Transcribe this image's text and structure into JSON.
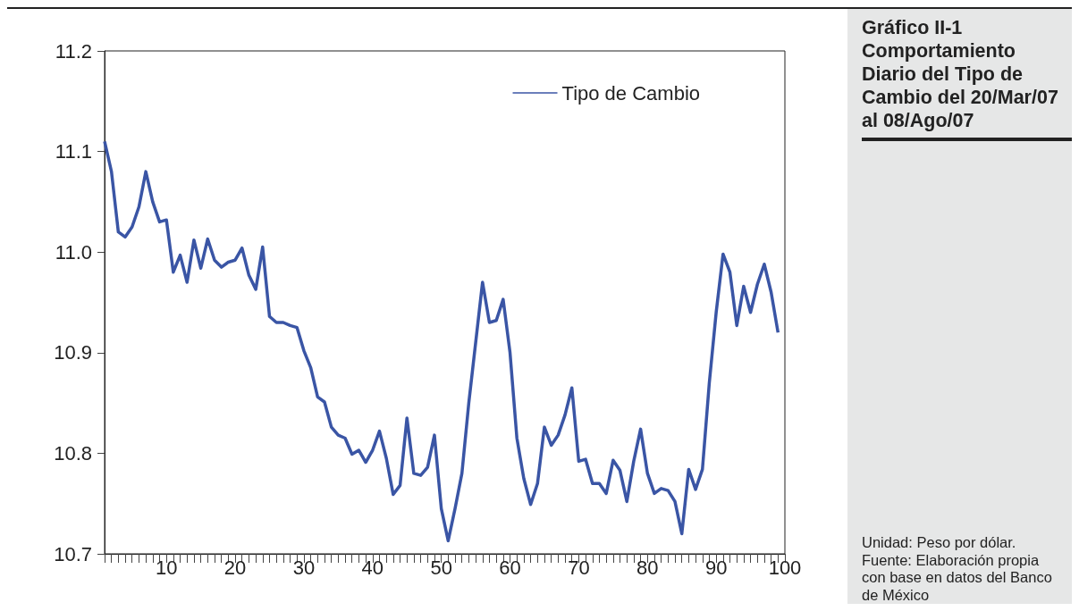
{
  "chart_data": {
    "type": "line",
    "title": "Gráfico II-1 Comportamiento Diario del Tipo de Cambio del 20/Mar/07 al 08/Ago/07",
    "annotations": [
      "Unidad: Peso por dólar.",
      "Fuente: Elaboración propia con base en datos del Banco de México"
    ],
    "x": [
      1,
      2,
      3,
      4,
      5,
      6,
      7,
      8,
      9,
      10,
      11,
      12,
      13,
      14,
      15,
      16,
      17,
      18,
      19,
      20,
      21,
      22,
      23,
      24,
      25,
      26,
      27,
      28,
      29,
      30,
      31,
      32,
      33,
      34,
      35,
      36,
      37,
      38,
      39,
      40,
      41,
      42,
      43,
      44,
      45,
      46,
      47,
      48,
      49,
      50,
      51,
      52,
      53,
      54,
      55,
      56,
      57,
      58,
      59,
      60,
      61,
      62,
      63,
      64,
      65,
      66,
      67,
      68,
      69,
      70,
      71,
      72,
      73,
      74,
      75,
      76,
      77,
      78,
      79,
      80,
      81,
      82,
      83,
      84,
      85,
      86,
      87,
      88,
      89,
      90,
      91,
      92,
      93,
      94,
      95,
      96,
      97,
      98,
      99
    ],
    "series": [
      {
        "name": "Tipo de Cambio",
        "color": "#3a55a5",
        "values": [
          11.11,
          11.08,
          11.02,
          11.015,
          11.025,
          11.045,
          11.08,
          11.05,
          11.03,
          11.032,
          10.98,
          10.997,
          10.97,
          11.012,
          10.984,
          11.013,
          10.992,
          10.985,
          10.99,
          10.992,
          11.004,
          10.977,
          10.963,
          11.005,
          10.936,
          10.93,
          10.93,
          10.927,
          10.925,
          10.902,
          10.885,
          10.856,
          10.851,
          10.826,
          10.818,
          10.815,
          10.799,
          10.803,
          10.791,
          10.803,
          10.822,
          10.795,
          10.759,
          10.768,
          10.835,
          10.78,
          10.778,
          10.786,
          10.818,
          10.745,
          10.713,
          10.745,
          10.78,
          10.85,
          10.91,
          10.97,
          10.93,
          10.932,
          10.953,
          10.9,
          10.815,
          10.775,
          10.749,
          10.77,
          10.826,
          10.808,
          10.818,
          10.838,
          10.865,
          10.792,
          10.794,
          10.77,
          10.77,
          10.76,
          10.793,
          10.783,
          10.752,
          10.792,
          10.824,
          10.78,
          10.76,
          10.765,
          10.763,
          10.752,
          10.72,
          10.784,
          10.764,
          10.784,
          10.87,
          10.94,
          10.998,
          10.98,
          10.927,
          10.966,
          10.94,
          10.968,
          10.988,
          10.96,
          10.92
        ]
      }
    ],
    "xlim": [
      1,
      100
    ],
    "xticks": [
      {
        "value": 1,
        "label": null
      },
      {
        "value": 2,
        "label": null
      },
      {
        "value": 3,
        "label": null
      },
      {
        "value": 4,
        "label": null
      },
      {
        "value": 5,
        "label": null
      },
      {
        "value": 6,
        "label": null
      },
      {
        "value": 7,
        "label": null
      },
      {
        "value": 8,
        "label": null
      },
      {
        "value": 9,
        "label": null
      },
      10,
      {
        "value": 11,
        "label": null
      },
      {
        "value": 12,
        "label": null
      },
      {
        "value": 13,
        "label": null
      },
      {
        "value": 14,
        "label": null
      },
      {
        "value": 15,
        "label": null
      },
      {
        "value": 16,
        "label": null
      },
      {
        "value": 17,
        "label": null
      },
      {
        "value": 18,
        "label": null
      },
      {
        "value": 19,
        "label": null
      },
      20,
      {
        "value": 21,
        "label": null
      },
      {
        "value": 22,
        "label": null
      },
      {
        "value": 23,
        "label": null
      },
      {
        "value": 24,
        "label": null
      },
      {
        "value": 25,
        "label": null
      },
      {
        "value": 26,
        "label": null
      },
      {
        "value": 27,
        "label": null
      },
      {
        "value": 28,
        "label": null
      },
      {
        "value": 29,
        "label": null
      },
      30,
      {
        "value": 31,
        "label": null
      },
      {
        "value": 32,
        "label": null
      },
      {
        "value": 33,
        "label": null
      },
      {
        "value": 34,
        "label": null
      },
      {
        "value": 35,
        "label": null
      },
      {
        "value": 36,
        "label": null
      },
      {
        "value": 37,
        "label": null
      },
      {
        "value": 38,
        "label": null
      },
      {
        "value": 39,
        "label": null
      },
      40,
      {
        "value": 41,
        "label": null
      },
      {
        "value": 42,
        "label": null
      },
      {
        "value": 43,
        "label": null
      },
      {
        "value": 44,
        "label": null
      },
      {
        "value": 45,
        "label": null
      },
      {
        "value": 46,
        "label": null
      },
      {
        "value": 47,
        "label": null
      },
      {
        "value": 48,
        "label": null
      },
      {
        "value": 49,
        "label": null
      },
      50,
      {
        "value": 51,
        "label": null
      },
      {
        "value": 52,
        "label": null
      },
      {
        "value": 53,
        "label": null
      },
      {
        "value": 54,
        "label": null
      },
      {
        "value": 55,
        "label": null
      },
      {
        "value": 56,
        "label": null
      },
      {
        "value": 57,
        "label": null
      },
      {
        "value": 58,
        "label": null
      },
      {
        "value": 59,
        "label": null
      },
      60,
      {
        "value": 61,
        "label": null
      },
      {
        "value": 62,
        "label": null
      },
      {
        "value": 63,
        "label": null
      },
      {
        "value": 64,
        "label": null
      },
      {
        "value": 65,
        "label": null
      },
      {
        "value": 66,
        "label": null
      },
      {
        "value": 67,
        "label": null
      },
      {
        "value": 68,
        "label": null
      },
      {
        "value": 69,
        "label": null
      },
      70,
      {
        "value": 71,
        "label": null
      },
      {
        "value": 72,
        "label": null
      },
      {
        "value": 73,
        "label": null
      },
      {
        "value": 74,
        "label": null
      },
      {
        "value": 75,
        "label": null
      },
      {
        "value": 76,
        "label": null
      },
      {
        "value": 77,
        "label": null
      },
      {
        "value": 78,
        "label": null
      },
      {
        "value": 79,
        "label": null
      },
      80,
      {
        "value": 81,
        "label": null
      },
      {
        "value": 82,
        "label": null
      },
      {
        "value": 83,
        "label": null
      },
      {
        "value": 84,
        "label": null
      },
      {
        "value": 85,
        "label": null
      },
      {
        "value": 86,
        "label": null
      },
      {
        "value": 87,
        "label": null
      },
      {
        "value": 88,
        "label": null
      },
      {
        "value": 89,
        "label": null
      },
      90,
      {
        "value": 91,
        "label": null
      },
      {
        "value": 92,
        "label": null
      },
      {
        "value": 93,
        "label": null
      },
      {
        "value": 94,
        "label": null
      },
      {
        "value": 95,
        "label": null
      },
      {
        "value": 96,
        "label": null
      },
      {
        "value": 97,
        "label": null
      },
      {
        "value": 98,
        "label": null
      },
      {
        "value": 99,
        "label": null
      },
      100
    ],
    "ylim": [
      10.7,
      11.2
    ],
    "yticks": [
      {
        "value": 10.7,
        "label": "10.7"
      },
      {
        "value": 10.8,
        "label": "10.8"
      },
      {
        "value": 10.9,
        "label": "10.9"
      },
      {
        "value": 11.0,
        "label": "11.0"
      },
      {
        "value": 11.1,
        "label": "11.1"
      },
      {
        "value": 11.2,
        "label": "11.2"
      }
    ],
    "grid": false,
    "legend": "top right",
    "marker": "none",
    "line_style": "solid"
  }
}
